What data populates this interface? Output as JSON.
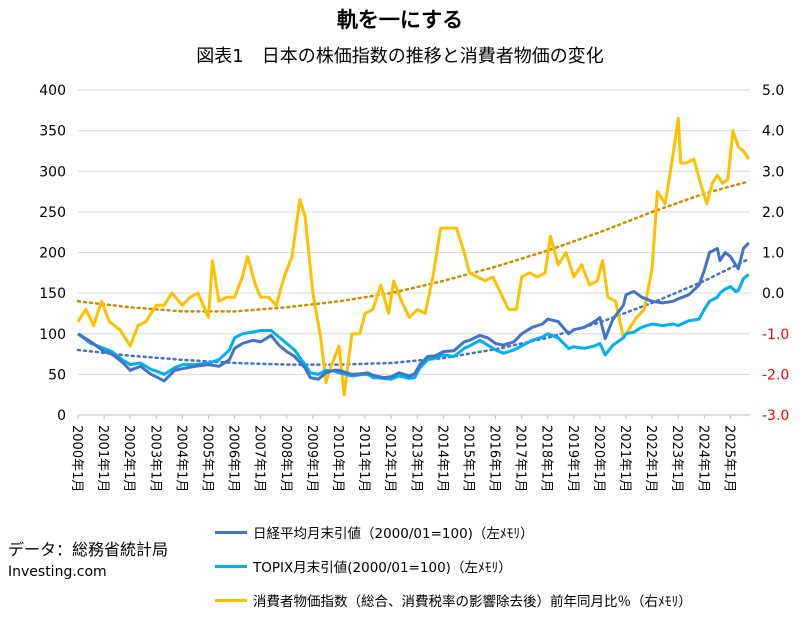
{
  "title": "軌を一にする",
  "subtitle": "図表1　日本の株価指数の推移と消費者物価の変化",
  "source": "データ：総務省統計局",
  "site": "Investing.com",
  "legend": [
    {
      "label": "日経平均月末引値（2000/01=100)（左ﾒﾓﾘ）",
      "color": "#4472c4"
    },
    {
      "label": "TOPIX月末引値(2000/01=100)（左ﾒﾓﾘ）",
      "color": "#00b0f0"
    },
    {
      "label": "消費者物価指数（総合、消費税率の影響除去後）前年同月比％（右ﾒﾓﾘ）",
      "color": "#ffc000"
    }
  ],
  "chart_data": {
    "type": "line",
    "x_categories": [
      "2000年1月",
      "2001年1月",
      "2002年1月",
      "2003年1月",
      "2004年1月",
      "2005年1月",
      "2006年1月",
      "2007年1月",
      "2008年1月",
      "2009年1月",
      "2010年1月",
      "2011年1月",
      "2012年1月",
      "2013年1月",
      "2014年1月",
      "2015年1月",
      "2016年1月",
      "2017年1月",
      "2018年1月",
      "2019年1月",
      "2020年1月",
      "2021年1月",
      "2022年1月",
      "2023年1月",
      "2024年1月",
      "2025年1月"
    ],
    "y_left": {
      "min": 0,
      "max": 400,
      "step": 50,
      "ticks": [
        "0",
        "50",
        "100",
        "150",
        "200",
        "250",
        "300",
        "350",
        "400"
      ]
    },
    "y_right": {
      "min": -3.0,
      "max": 5.0,
      "step": 1.0,
      "ticks": [
        "-3.0",
        "-2.0",
        "-1.0",
        "0.0",
        "1.0",
        "2.0",
        "3.0",
        "4.0",
        "5.0"
      ],
      "negative_color": "#ff0000"
    },
    "series": [
      {
        "name": "日経平均月末引値（2000/01=100)（左ﾒﾓﾘ）",
        "axis": "left",
        "color": "#4472c4",
        "x": [
          2000.0,
          2000.5,
          2001.0,
          2001.3,
          2001.7,
          2002.0,
          2002.4,
          2002.8,
          2003.0,
          2003.3,
          2003.7,
          2004.0,
          2004.5,
          2005.0,
          2005.4,
          2005.8,
          2006.0,
          2006.3,
          2006.7,
          2007.0,
          2007.4,
          2007.7,
          2008.0,
          2008.3,
          2008.7,
          2008.9,
          2009.2,
          2009.5,
          2009.8,
          2010.0,
          2010.5,
          2010.9,
          2011.1,
          2011.3,
          2011.7,
          2012.0,
          2012.3,
          2012.7,
          2012.9,
          2013.1,
          2013.4,
          2013.7,
          2014.0,
          2014.4,
          2014.8,
          2015.0,
          2015.4,
          2015.7,
          2016.0,
          2016.3,
          2016.7,
          2017.0,
          2017.4,
          2017.8,
          2018.0,
          2018.4,
          2018.8,
          2019.0,
          2019.4,
          2019.8,
          2020.0,
          2020.2,
          2020.5,
          2020.9,
          2021.0,
          2021.3,
          2021.6,
          2022.0,
          2022.4,
          2022.8,
          2023.0,
          2023.4,
          2023.8,
          2024.0,
          2024.2,
          2024.5,
          2024.6,
          2024.8,
          2025.0,
          2025.2,
          2025.3,
          2025.5,
          2025.7
        ],
        "values": [
          100,
          90,
          78,
          75,
          65,
          55,
          60,
          50,
          47,
          42,
          55,
          57,
          60,
          62,
          60,
          68,
          82,
          88,
          92,
          90,
          98,
          86,
          78,
          72,
          58,
          46,
          44,
          52,
          55,
          55,
          50,
          51,
          52,
          49,
          46,
          47,
          52,
          48,
          51,
          62,
          72,
          73,
          78,
          79,
          90,
          92,
          98,
          95,
          88,
          86,
          90,
          100,
          108,
          112,
          118,
          115,
          100,
          105,
          108,
          115,
          120,
          94,
          118,
          135,
          148,
          152,
          145,
          140,
          138,
          140,
          143,
          148,
          160,
          178,
          200,
          205,
          190,
          200,
          195,
          185,
          180,
          205,
          212
        ]
      },
      {
        "name": "TOPIX月末引値(2000/01=100)（左ﾒﾓﾘ）",
        "axis": "left",
        "color": "#00b0f0",
        "x": [
          2000.0,
          2000.5,
          2001.0,
          2001.3,
          2001.7,
          2002.0,
          2002.4,
          2002.8,
          2003.0,
          2003.3,
          2003.7,
          2004.0,
          2004.5,
          2005.0,
          2005.4,
          2005.8,
          2006.0,
          2006.3,
          2006.7,
          2007.0,
          2007.4,
          2007.7,
          2008.0,
          2008.3,
          2008.7,
          2008.9,
          2009.2,
          2009.5,
          2009.8,
          2010.0,
          2010.5,
          2010.9,
          2011.1,
          2011.3,
          2011.7,
          2012.0,
          2012.3,
          2012.7,
          2012.9,
          2013.1,
          2013.4,
          2013.7,
          2014.0,
          2014.4,
          2014.8,
          2015.0,
          2015.4,
          2015.7,
          2016.0,
          2016.3,
          2016.7,
          2017.0,
          2017.4,
          2017.8,
          2018.0,
          2018.4,
          2018.8,
          2019.0,
          2019.4,
          2019.8,
          2020.0,
          2020.2,
          2020.5,
          2020.9,
          2021.0,
          2021.3,
          2021.6,
          2022.0,
          2022.4,
          2022.8,
          2023.0,
          2023.4,
          2023.8,
          2024.0,
          2024.2,
          2024.5,
          2024.6,
          2024.8,
          2025.0,
          2025.2,
          2025.3,
          2025.5,
          2025.7
        ],
        "values": [
          100,
          88,
          82,
          78,
          68,
          62,
          64,
          56,
          54,
          50,
          58,
          62,
          62,
          64,
          68,
          80,
          95,
          100,
          102,
          104,
          104,
          96,
          88,
          80,
          62,
          52,
          50,
          55,
          54,
          52,
          48,
          50,
          50,
          46,
          45,
          44,
          48,
          45,
          46,
          58,
          68,
          70,
          74,
          72,
          82,
          85,
          92,
          86,
          80,
          76,
          80,
          85,
          92,
          96,
          100,
          95,
          82,
          84,
          82,
          85,
          88,
          74,
          86,
          95,
          100,
          102,
          108,
          112,
          110,
          112,
          110,
          116,
          118,
          130,
          140,
          145,
          150,
          155,
          158,
          152,
          153,
          168,
          173
        ]
      },
      {
        "name": "消費者物価指数（総合、消費税率の影響除去後）前年同月比％（右ﾒﾓﾘ）",
        "axis": "right",
        "color": "#ffc000",
        "x": [
          2000.0,
          2000.3,
          2000.6,
          2000.9,
          2001.2,
          2001.6,
          2002.0,
          2002.3,
          2002.6,
          2003.0,
          2003.3,
          2003.6,
          2004.0,
          2004.3,
          2004.6,
          2005.0,
          2005.15,
          2005.4,
          2005.7,
          2006.0,
          2006.3,
          2006.5,
          2006.8,
          2007.0,
          2007.3,
          2007.6,
          2007.9,
          2008.2,
          2008.5,
          2008.7,
          2009.0,
          2009.3,
          2009.5,
          2009.7,
          2010.0,
          2010.2,
          2010.5,
          2010.8,
          2011.0,
          2011.3,
          2011.6,
          2011.9,
          2012.1,
          2012.4,
          2012.7,
          2013.0,
          2013.3,
          2013.6,
          2013.9,
          2014.2,
          2014.5,
          2014.8,
          2015.0,
          2015.3,
          2015.6,
          2015.9,
          2016.2,
          2016.5,
          2016.8,
          2017.0,
          2017.3,
          2017.6,
          2017.9,
          2018.1,
          2018.4,
          2018.7,
          2019.0,
          2019.3,
          2019.6,
          2019.9,
          2020.1,
          2020.3,
          2020.6,
          2020.9,
          2021.1,
          2021.4,
          2021.7,
          2022.0,
          2022.2,
          2022.5,
          2022.8,
          2023.0,
          2023.1,
          2023.3,
          2023.6,
          2023.9,
          2024.1,
          2024.3,
          2024.5,
          2024.7,
          2024.9,
          2025.1,
          2025.3,
          2025.5,
          2025.7
        ],
        "values": [
          -0.7,
          -0.4,
          -0.8,
          -0.2,
          -0.7,
          -0.9,
          -1.3,
          -0.8,
          -0.7,
          -0.3,
          -0.3,
          0.0,
          -0.3,
          -0.1,
          0.0,
          -0.6,
          0.8,
          -0.2,
          -0.1,
          -0.1,
          0.4,
          0.9,
          0.2,
          -0.1,
          -0.1,
          -0.3,
          0.4,
          0.9,
          2.3,
          1.9,
          0.0,
          -1.1,
          -2.2,
          -1.8,
          -1.3,
          -2.5,
          -1.0,
          -1.0,
          -0.5,
          -0.4,
          0.2,
          -0.5,
          0.3,
          -0.2,
          -0.6,
          -0.4,
          -0.5,
          0.4,
          1.6,
          1.6,
          1.6,
          1.0,
          0.5,
          0.4,
          0.3,
          0.4,
          0.0,
          -0.4,
          -0.4,
          0.4,
          0.5,
          0.4,
          0.5,
          1.4,
          0.7,
          1.0,
          0.4,
          0.7,
          0.2,
          0.3,
          0.8,
          -0.1,
          -0.2,
          -1.1,
          -0.9,
          -0.6,
          -0.4,
          0.6,
          2.5,
          2.2,
          3.4,
          4.3,
          3.2,
          3.2,
          3.3,
          2.6,
          2.2,
          2.7,
          2.9,
          2.7,
          2.8,
          4.0,
          3.6,
          3.5,
          3.3
        ]
      }
    ],
    "trendlines": [
      {
        "axis": "left",
        "color": "#4472c4",
        "style": "dotted",
        "x": [
          2000,
          2002,
          2004,
          2006,
          2008,
          2010,
          2012,
          2014,
          2016,
          2018,
          2020,
          2022,
          2024,
          2025.7
        ],
        "values": [
          80,
          73,
          68,
          64,
          62,
          62,
          64,
          70,
          81,
          95,
          114,
          138,
          165,
          192
        ]
      },
      {
        "axis": "right",
        "color": "#c89000",
        "style": "dotted",
        "x": [
          2000,
          2002,
          2004,
          2006,
          2008,
          2010,
          2012,
          2014,
          2016,
          2018,
          2020,
          2022,
          2024,
          2025.7
        ],
        "values": [
          -0.2,
          -0.35,
          -0.45,
          -0.45,
          -0.35,
          -0.2,
          0.0,
          0.3,
          0.65,
          1.05,
          1.5,
          2.0,
          2.45,
          2.75
        ]
      }
    ]
  }
}
